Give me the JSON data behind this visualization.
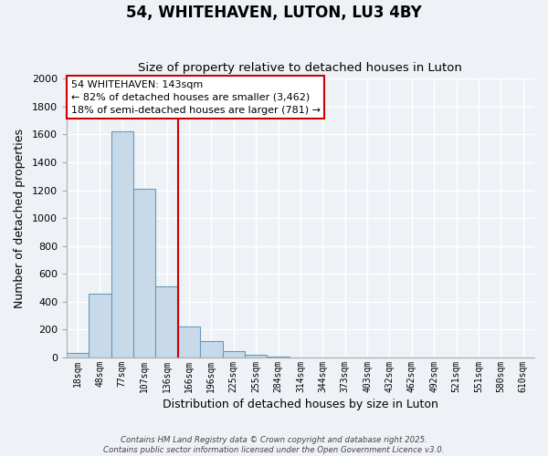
{
  "title": "54, WHITEHAVEN, LUTON, LU3 4BY",
  "subtitle": "Size of property relative to detached houses in Luton",
  "xlabel": "Distribution of detached houses by size in Luton",
  "ylabel": "Number of detached properties",
  "categories": [
    "18sqm",
    "48sqm",
    "77sqm",
    "107sqm",
    "136sqm",
    "166sqm",
    "196sqm",
    "225sqm",
    "255sqm",
    "284sqm",
    "314sqm",
    "344sqm",
    "373sqm",
    "403sqm",
    "432sqm",
    "462sqm",
    "492sqm",
    "521sqm",
    "551sqm",
    "580sqm",
    "610sqm"
  ],
  "bar_values": [
    35,
    460,
    1620,
    1210,
    510,
    220,
    115,
    45,
    18,
    5,
    0,
    0,
    0,
    0,
    0,
    0,
    0,
    0,
    0,
    0,
    0
  ],
  "bar_color": "#c8daea",
  "bar_edge_color": "#6699bb",
  "vline_color": "#cc0000",
  "annotation_title": "54 WHITEHAVEN: 143sqm",
  "annotation_line1": "← 82% of detached houses are smaller (3,462)",
  "annotation_line2": "18% of semi-detached houses are larger (781) →",
  "annotation_box_facecolor": "#ffffff",
  "annotation_box_edgecolor": "#cc0000",
  "ylim": [
    0,
    2000
  ],
  "yticks": [
    0,
    200,
    400,
    600,
    800,
    1000,
    1200,
    1400,
    1600,
    1800,
    2000
  ],
  "footer1": "Contains HM Land Registry data © Crown copyright and database right 2025.",
  "footer2": "Contains public sector information licensed under the Open Government Licence v3.0.",
  "background_color": "#eef2f7",
  "grid_color": "#ffffff",
  "vline_x_index": 4.5
}
